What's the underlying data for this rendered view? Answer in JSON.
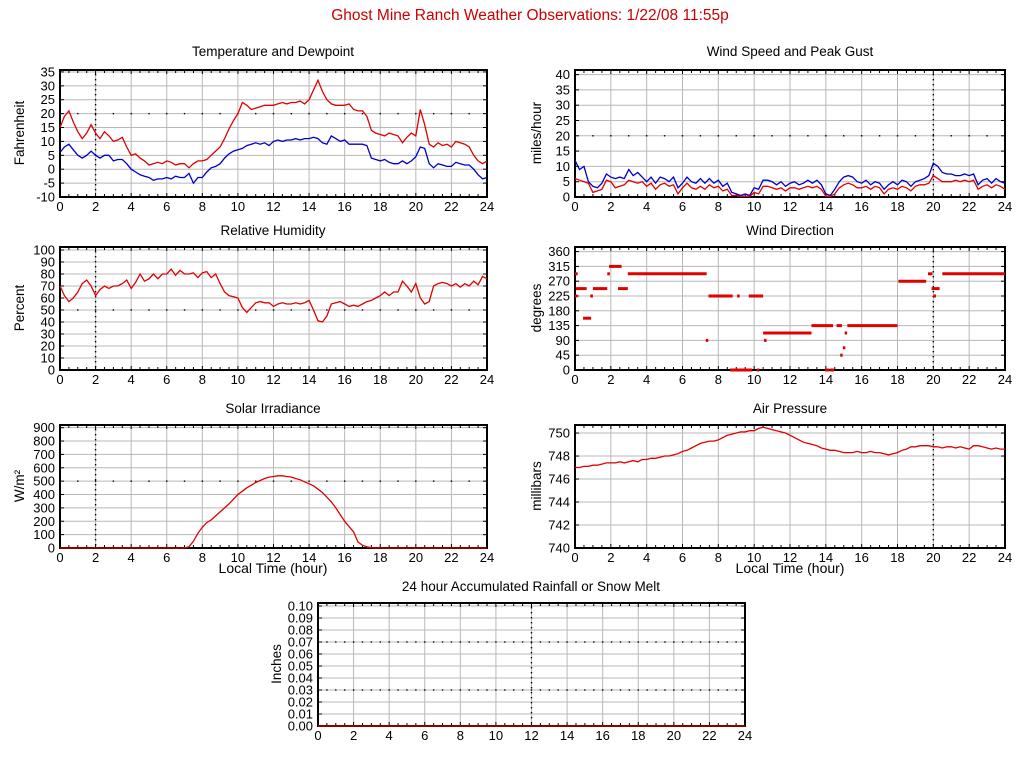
{
  "page": {
    "title": "Ghost Mine Ranch Weather Observations: 1/22/08 11:55p",
    "title_color": "#cc0000",
    "background": "#ffffff"
  },
  "colors": {
    "red_series": "#e00000",
    "blue_series": "#0000cc",
    "grid": "#b8b8b8",
    "frame": "#000000",
    "text": "#000000"
  },
  "x_axis": {
    "range": [
      0,
      24
    ],
    "ticks": [
      0,
      2,
      4,
      6,
      8,
      10,
      12,
      14,
      16,
      18,
      20,
      22,
      24
    ],
    "tick_labels": [
      "0",
      "2",
      "4",
      "6",
      "8",
      "10",
      "12",
      "14",
      "16",
      "18",
      "20",
      "22",
      "24"
    ],
    "minor_step": 0.5
  },
  "chart_data": [
    {
      "id": "temperature_dewpoint",
      "type": "line",
      "title": "Temperature and Dewpoint",
      "ylabel": "Fahrenheit",
      "xlabel": null,
      "ylim": [
        -10,
        35.7
      ],
      "yticks": [
        -10,
        -5,
        0,
        5,
        10,
        15,
        20,
        25,
        30,
        35
      ],
      "ytick_labels": [
        "-10",
        "-5",
        "0",
        "5",
        "10",
        "15",
        "20",
        "25",
        "30",
        "35"
      ],
      "x_start": 0,
      "x_step": 0.25,
      "dotted_col": 2,
      "dotted_rows": [
        20
      ],
      "dot_step": 1,
      "series": [
        {
          "name": "temperature",
          "color_key": "red_series",
          "values": [
            15,
            19,
            21,
            17,
            13.5,
            11,
            13,
            16,
            13,
            11,
            13.5,
            12,
            10,
            10.5,
            11.5,
            8,
            5,
            5.5,
            4,
            3,
            1.5,
            2,
            2.5,
            2,
            3,
            2.5,
            1.5,
            2,
            2,
            0.5,
            2,
            3,
            3,
            3.5,
            5,
            6.5,
            8,
            11,
            14.5,
            17.5,
            20,
            24,
            23,
            21.5,
            22,
            22.5,
            23,
            23,
            23,
            23.5,
            24,
            23.5,
            24,
            24,
            24.5,
            23.5,
            25,
            28.5,
            32,
            28,
            25,
            23.5,
            23,
            23,
            23,
            23.5,
            21.5,
            21,
            21,
            19,
            14,
            13,
            12.5,
            12,
            13,
            12.5,
            12,
            9.5,
            11.5,
            13,
            12,
            21.5,
            16,
            9,
            8,
            9.5,
            8.5,
            9,
            8,
            10,
            9.5,
            9,
            8,
            5,
            3,
            2,
            3
          ]
        },
        {
          "name": "dewpoint",
          "color_key": "blue_series",
          "values": [
            6,
            8,
            9,
            7,
            5,
            4,
            5,
            6.5,
            5,
            4,
            5,
            5,
            3,
            3.5,
            3.5,
            2,
            0,
            -1,
            -2,
            -2.5,
            -3,
            -4,
            -3.5,
            -3.5,
            -3,
            -3.5,
            -2.5,
            -3,
            -3,
            -1.5,
            -5,
            -3,
            -3,
            -1,
            0.5,
            1,
            2,
            4,
            5.5,
            6.5,
            7,
            7.5,
            8.5,
            9,
            9.5,
            9,
            9.5,
            8.5,
            10,
            10.5,
            10,
            10.5,
            10.5,
            11,
            10.5,
            11,
            11,
            11.5,
            11,
            9.5,
            9,
            12,
            11,
            10,
            10.5,
            9,
            9,
            9,
            9,
            8.5,
            4,
            3.5,
            3,
            3.5,
            2.5,
            2,
            2,
            3,
            2,
            3,
            4.5,
            8,
            7.5,
            2,
            0.5,
            2,
            1.5,
            1,
            1,
            2.5,
            2,
            1.5,
            1.5,
            0,
            -2,
            -3.5,
            -3
          ]
        }
      ]
    },
    {
      "id": "wind_speed_gust",
      "type": "line",
      "title": "Wind Speed and Peak Gust",
      "ylabel": "miles/hour",
      "xlabel": null,
      "ylim": [
        0,
        41.5
      ],
      "yticks": [
        0,
        5,
        10,
        15,
        20,
        25,
        30,
        35,
        40
      ],
      "ytick_labels": [
        "0",
        "5",
        "10",
        "15",
        "20",
        "25",
        "30",
        "35",
        "40"
      ],
      "x_start": 0,
      "x_step": 0.25,
      "dotted_col": 20,
      "dotted_rows": [
        20
      ],
      "dot_step": 1,
      "series": [
        {
          "name": "peak_gust",
          "color_key": "blue_series",
          "values": [
            12,
            9,
            10,
            5,
            3.5,
            3,
            4.5,
            7.5,
            6.5,
            6,
            6.5,
            6,
            9,
            7,
            8,
            6.5,
            5,
            6.5,
            4.5,
            6.5,
            6,
            5,
            6.5,
            3,
            4.5,
            6.5,
            5,
            4.5,
            6,
            4.5,
            6,
            4.5,
            5.5,
            3.5,
            4.5,
            1.5,
            1,
            0.5,
            1,
            0.5,
            3,
            2.5,
            5.5,
            5.5,
            5,
            4,
            5,
            3.5,
            4.5,
            5,
            4,
            4.5,
            5.5,
            4.5,
            5.5,
            4,
            1,
            0.5,
            2.5,
            5,
            6.5,
            7,
            6.5,
            5,
            4.5,
            5.5,
            4,
            5,
            4.5,
            2.5,
            4,
            5,
            4,
            5.5,
            5,
            3.5,
            5,
            5.5,
            6,
            7,
            11,
            10,
            8,
            7.5,
            7.5,
            7,
            7,
            7.5,
            7,
            7.5,
            4,
            5.5,
            6,
            4.5,
            6,
            5,
            4.5
          ]
        },
        {
          "name": "wind_speed",
          "color_key": "red_series",
          "values": [
            6,
            5.5,
            5,
            4.5,
            1.5,
            2,
            2.5,
            5.5,
            5,
            3,
            3.5,
            4,
            5.5,
            5,
            4.5,
            5,
            3.5,
            4.5,
            2.5,
            4,
            4.5,
            3.5,
            4,
            1,
            3,
            4.5,
            3,
            2.5,
            3.5,
            2.5,
            4,
            3,
            3.5,
            2,
            2.5,
            0.5,
            0.5,
            0.2,
            0.3,
            0.2,
            1.5,
            1,
            3.5,
            3.5,
            3,
            2.5,
            3,
            2,
            3,
            3,
            2.5,
            3,
            3.5,
            3,
            3.5,
            2.5,
            0.3,
            0.2,
            1,
            3,
            4,
            4.5,
            4,
            3,
            3,
            3.5,
            2.5,
            3.5,
            3,
            1,
            2.5,
            3,
            2.5,
            3.5,
            3,
            2,
            3.5,
            4,
            4,
            4.5,
            7,
            6,
            5,
            5,
            5,
            5.5,
            5,
            5.5,
            5,
            5.5,
            2.5,
            3.5,
            4,
            3,
            4,
            3.5,
            2.5
          ]
        }
      ]
    },
    {
      "id": "relative_humidity",
      "type": "line",
      "title": "Relative Humidity",
      "ylabel": "Percent",
      "xlabel": null,
      "ylim": [
        0,
        102.5
      ],
      "yticks": [
        0,
        10,
        20,
        30,
        40,
        50,
        60,
        70,
        80,
        90,
        100
      ],
      "ytick_labels": [
        "0",
        "10",
        "20",
        "30",
        "40",
        "50",
        "60",
        "70",
        "80",
        "90",
        "100"
      ],
      "x_start": 0,
      "x_step": 0.25,
      "dotted_col": 2,
      "dotted_rows": [
        50
      ],
      "dot_step": 1,
      "series": [
        {
          "name": "humidity",
          "color_key": "red_series",
          "values": [
            70,
            62,
            57,
            60,
            65,
            72,
            75,
            70,
            62,
            67,
            70,
            68,
            70,
            70,
            72,
            75,
            68,
            73,
            80,
            74,
            76,
            80,
            76,
            80,
            80,
            84,
            79,
            83,
            80,
            80,
            81,
            77,
            81,
            82,
            77,
            80,
            72,
            65,
            62,
            61,
            60,
            52,
            48,
            52,
            56,
            57,
            56,
            56,
            53,
            55,
            56,
            55,
            55,
            56,
            55,
            56,
            58,
            50,
            41,
            40,
            45,
            55,
            56,
            57,
            55,
            53,
            54,
            53,
            55,
            57,
            58,
            60,
            62,
            65,
            62,
            65,
            65,
            74,
            70,
            65,
            72,
            60,
            55,
            57,
            70,
            72,
            73,
            72,
            70,
            72,
            69,
            72,
            70,
            74,
            71,
            78,
            76
          ]
        }
      ]
    },
    {
      "id": "wind_direction",
      "type": "segments",
      "title": "Wind Direction",
      "ylabel": "degrees",
      "xlabel": null,
      "ylim": [
        0,
        374
      ],
      "yticks": [
        0,
        45,
        90,
        135,
        180,
        225,
        270,
        315,
        360
      ],
      "ytick_labels": [
        "0",
        "45",
        "90",
        "135",
        "180",
        "225",
        "270",
        "315",
        "360"
      ],
      "dotted_col": 20,
      "dotted_rows": [],
      "dot_step": 1,
      "segment_color_key": "red_series",
      "segments": [
        [
          0.0,
          0.15,
          292.5
        ],
        [
          0.0,
          0.1,
          225
        ],
        [
          0.05,
          0.65,
          247.5
        ],
        [
          0.45,
          0.9,
          157.5
        ],
        [
          0.85,
          1.0,
          225
        ],
        [
          1.0,
          1.8,
          247.5
        ],
        [
          1.8,
          1.95,
          292.5
        ],
        [
          1.9,
          2.6,
          315
        ],
        [
          2.4,
          2.95,
          247.5
        ],
        [
          2.95,
          7.35,
          292.5
        ],
        [
          7.3,
          7.4,
          90
        ],
        [
          7.45,
          8.8,
          225
        ],
        [
          8.65,
          9.9,
          0
        ],
        [
          9.05,
          9.15,
          225
        ],
        [
          9.7,
          10.5,
          225
        ],
        [
          10.15,
          10.25,
          0
        ],
        [
          10.55,
          10.65,
          90
        ],
        [
          10.5,
          13.2,
          112.5
        ],
        [
          13.2,
          14.4,
          135
        ],
        [
          14.6,
          14.9,
          135
        ],
        [
          13.95,
          14.2,
          0
        ],
        [
          14.25,
          14.45,
          0
        ],
        [
          14.8,
          14.9,
          45
        ],
        [
          14.95,
          15.05,
          67.5
        ],
        [
          15.05,
          15.15,
          112.5
        ],
        [
          15.2,
          18.0,
          135
        ],
        [
          18.05,
          19.6,
          270
        ],
        [
          19.7,
          19.95,
          292.5
        ],
        [
          20.0,
          20.15,
          225
        ],
        [
          19.9,
          20.35,
          247.5
        ],
        [
          20.5,
          24.0,
          292.5
        ]
      ]
    },
    {
      "id": "solar_irradiance",
      "type": "line",
      "title": "Solar Irradiance",
      "ylabel": "W/m²",
      "xlabel": "Local Time (hour)",
      "ylim": [
        0,
        920
      ],
      "yticks": [
        0,
        100,
        200,
        300,
        400,
        500,
        600,
        700,
        800,
        900
      ],
      "ytick_labels": [
        "0",
        "100",
        "200",
        "300",
        "400",
        "500",
        "600",
        "700",
        "800",
        "900"
      ],
      "x_start": 0,
      "x_step": 0.25,
      "dotted_col": 2,
      "dotted_rows": [
        500
      ],
      "dot_step": 1,
      "series": [
        {
          "name": "irradiance",
          "color_key": "red_series",
          "values": [
            0,
            0,
            0,
            0,
            0,
            0,
            0,
            0,
            0,
            0,
            0,
            0,
            0,
            0,
            0,
            0,
            0,
            0,
            0,
            0,
            0,
            0,
            0,
            0,
            0,
            0,
            0,
            0,
            0,
            10,
            50,
            110,
            155,
            190,
            210,
            240,
            270,
            300,
            330,
            365,
            400,
            425,
            450,
            470,
            490,
            505,
            520,
            530,
            535,
            540,
            540,
            535,
            530,
            520,
            510,
            495,
            480,
            465,
            440,
            415,
            380,
            345,
            300,
            250,
            200,
            160,
            120,
            45,
            20,
            8,
            2,
            0,
            0,
            0,
            0,
            0,
            0,
            0,
            0,
            0,
            0,
            0,
            0,
            0,
            0,
            0,
            0,
            0,
            0,
            0,
            0,
            0,
            0,
            0,
            0,
            0,
            0
          ]
        }
      ]
    },
    {
      "id": "air_pressure",
      "type": "line",
      "title": "Air Pressure",
      "ylabel": "millibars",
      "xlabel": "Local Time (hour)",
      "ylim": [
        740,
        750.7
      ],
      "yticks": [
        740,
        742,
        744,
        746,
        748,
        750
      ],
      "ytick_labels": [
        "740",
        "742",
        "744",
        "746",
        "748",
        "750"
      ],
      "x_start": 0,
      "x_step": 0.25,
      "dotted_col": 20,
      "dotted_rows": [],
      "dot_step": 1,
      "series": [
        {
          "name": "pressure",
          "color_key": "red_series",
          "values": [
            747.0,
            747.0,
            747.1,
            747.1,
            747.2,
            747.2,
            747.3,
            747.4,
            747.4,
            747.4,
            747.5,
            747.4,
            747.5,
            747.6,
            747.5,
            747.7,
            747.7,
            747.8,
            747.8,
            747.9,
            748.0,
            748.0,
            748.1,
            748.2,
            748.4,
            748.5,
            748.7,
            748.9,
            749.1,
            749.2,
            749.3,
            749.3,
            749.4,
            749.6,
            749.8,
            749.9,
            750.0,
            750.1,
            750.1,
            750.2,
            750.2,
            750.4,
            750.5,
            750.4,
            750.3,
            750.2,
            750.1,
            750.0,
            749.8,
            749.6,
            749.4,
            749.2,
            749.1,
            749.0,
            748.9,
            748.7,
            748.6,
            748.5,
            748.5,
            748.4,
            748.3,
            748.3,
            748.3,
            748.4,
            748.3,
            748.3,
            748.4,
            748.3,
            748.3,
            748.2,
            748.1,
            748.2,
            748.3,
            748.5,
            748.6,
            748.8,
            748.8,
            748.9,
            748.9,
            748.9,
            748.8,
            748.8,
            748.7,
            748.8,
            748.8,
            748.7,
            748.8,
            748.7,
            748.6,
            748.9,
            748.9,
            748.8,
            748.7,
            748.6,
            748.7,
            748.6,
            748.6
          ]
        }
      ]
    },
    {
      "id": "rainfall",
      "type": "line",
      "title": "24 hour Accumulated Rainfall or Snow Melt",
      "ylabel": "Inches",
      "xlabel": null,
      "ylim": [
        0,
        0.1025
      ],
      "yticks": [
        0,
        0.01,
        0.02,
        0.03,
        0.04,
        0.05,
        0.06,
        0.07,
        0.08,
        0.09,
        0.1
      ],
      "ytick_labels": [
        "0.00",
        "0.01",
        "0.02",
        "0.03",
        "0.04",
        "0.05",
        "0.06",
        "0.07",
        "0.08",
        "0.09",
        "0.10"
      ],
      "x_start": 0,
      "x_step": 24,
      "dotted_col": 12,
      "dotted_rows": [
        0.03,
        0.07
      ],
      "dot_step": 0.5,
      "series": [
        {
          "name": "accumulated_rainfall",
          "color_key": "red_series",
          "values": [
            0,
            0
          ]
        }
      ]
    }
  ]
}
